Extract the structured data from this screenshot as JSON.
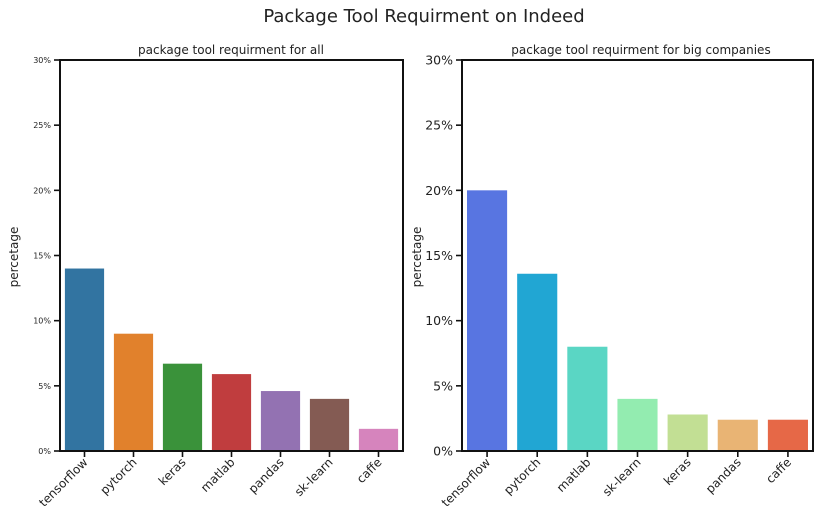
{
  "figure": {
    "title": "Package Tool Requirment on Indeed"
  },
  "chart_data": [
    {
      "type": "bar",
      "title": "package tool requirment for all",
      "xlabel": "",
      "ylabel": "percetage",
      "ylim": [
        0,
        30
      ],
      "yticks": [
        0,
        5,
        10,
        15,
        20,
        25,
        30
      ],
      "ytick_labels": [
        "0%",
        "5%",
        "10%",
        "15%",
        "20%",
        "25%",
        "30%"
      ],
      "categories": [
        "tensorflow",
        "pytorch",
        "keras",
        "matlab",
        "pandas",
        "sk-learn",
        "caffe"
      ],
      "values": [
        14.0,
        9.0,
        6.7,
        5.9,
        4.6,
        4.0,
        1.7
      ],
      "colors": [
        "#3274a1",
        "#e1812c",
        "#3a923a",
        "#c03d3e",
        "#9372b2",
        "#845b53",
        "#d684bd"
      ],
      "grid": false,
      "ytick_size": "small"
    },
    {
      "type": "bar",
      "title": "package tool requirment for big companies",
      "xlabel": "",
      "ylabel": "percetage",
      "ylim": [
        0,
        30
      ],
      "yticks": [
        0,
        5,
        10,
        15,
        20,
        25,
        30
      ],
      "ytick_labels": [
        "0%",
        "5%",
        "10%",
        "15%",
        "20%",
        "25%",
        "30%"
      ],
      "categories": [
        "tensorflow",
        "pytorch",
        "matlab",
        "sk-learn",
        "keras",
        "pandas",
        "caffe"
      ],
      "values": [
        20.0,
        13.6,
        8.0,
        4.0,
        2.8,
        2.4,
        2.4
      ],
      "colors": [
        "#5875e1",
        "#21a6d3",
        "#5ad6c4",
        "#93ecb0",
        "#c2df94",
        "#e9b474",
        "#e66847"
      ],
      "grid": false,
      "ytick_size": "large"
    }
  ]
}
